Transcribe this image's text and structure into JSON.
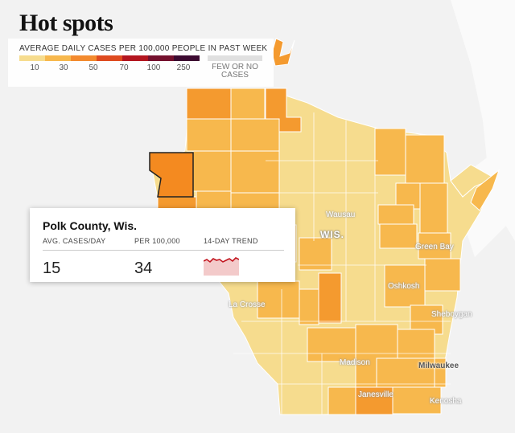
{
  "title": "Hot spots",
  "legend": {
    "label": "AVERAGE DAILY CASES PER 100,000 PEOPLE IN PAST WEEK",
    "ticks": [
      "10",
      "30",
      "50",
      "70",
      "100",
      "250"
    ],
    "ramp_colors": [
      "#f6dc8e",
      "#f7b84d",
      "#f38a2e",
      "#de4a1f",
      "#b3151f",
      "#74102d",
      "#3c0a31"
    ],
    "few_label": "FEW OR NO CASES",
    "few_color": "#e0e0e0"
  },
  "map": {
    "state_label": "WIS.",
    "cities": {
      "wausau": "Wausau",
      "green_bay": "Green Bay",
      "oshkosh": "Oshkosh",
      "sheboygan": "Sheboygan",
      "la_crosse": "La Crosse",
      "madison": "Madison",
      "milwaukee": "Milwaukee",
      "janesville": "Janesville",
      "kenosha": "Kenosha"
    },
    "fill_colors": {
      "light": "#f6dc8e",
      "medium": "#f7b84d",
      "dark": "#f49a2f",
      "highlight": "#f48a20"
    }
  },
  "tooltip": {
    "county": "Polk County, Wis.",
    "avg_label": "AVG. CASES/DAY",
    "per100k_label": "PER 100,000",
    "trend_label": "14-DAY TREND",
    "avg_value": "15",
    "per100k_value": "34",
    "trend_color": "#c2151f",
    "trend_fill": "#f3caca"
  }
}
